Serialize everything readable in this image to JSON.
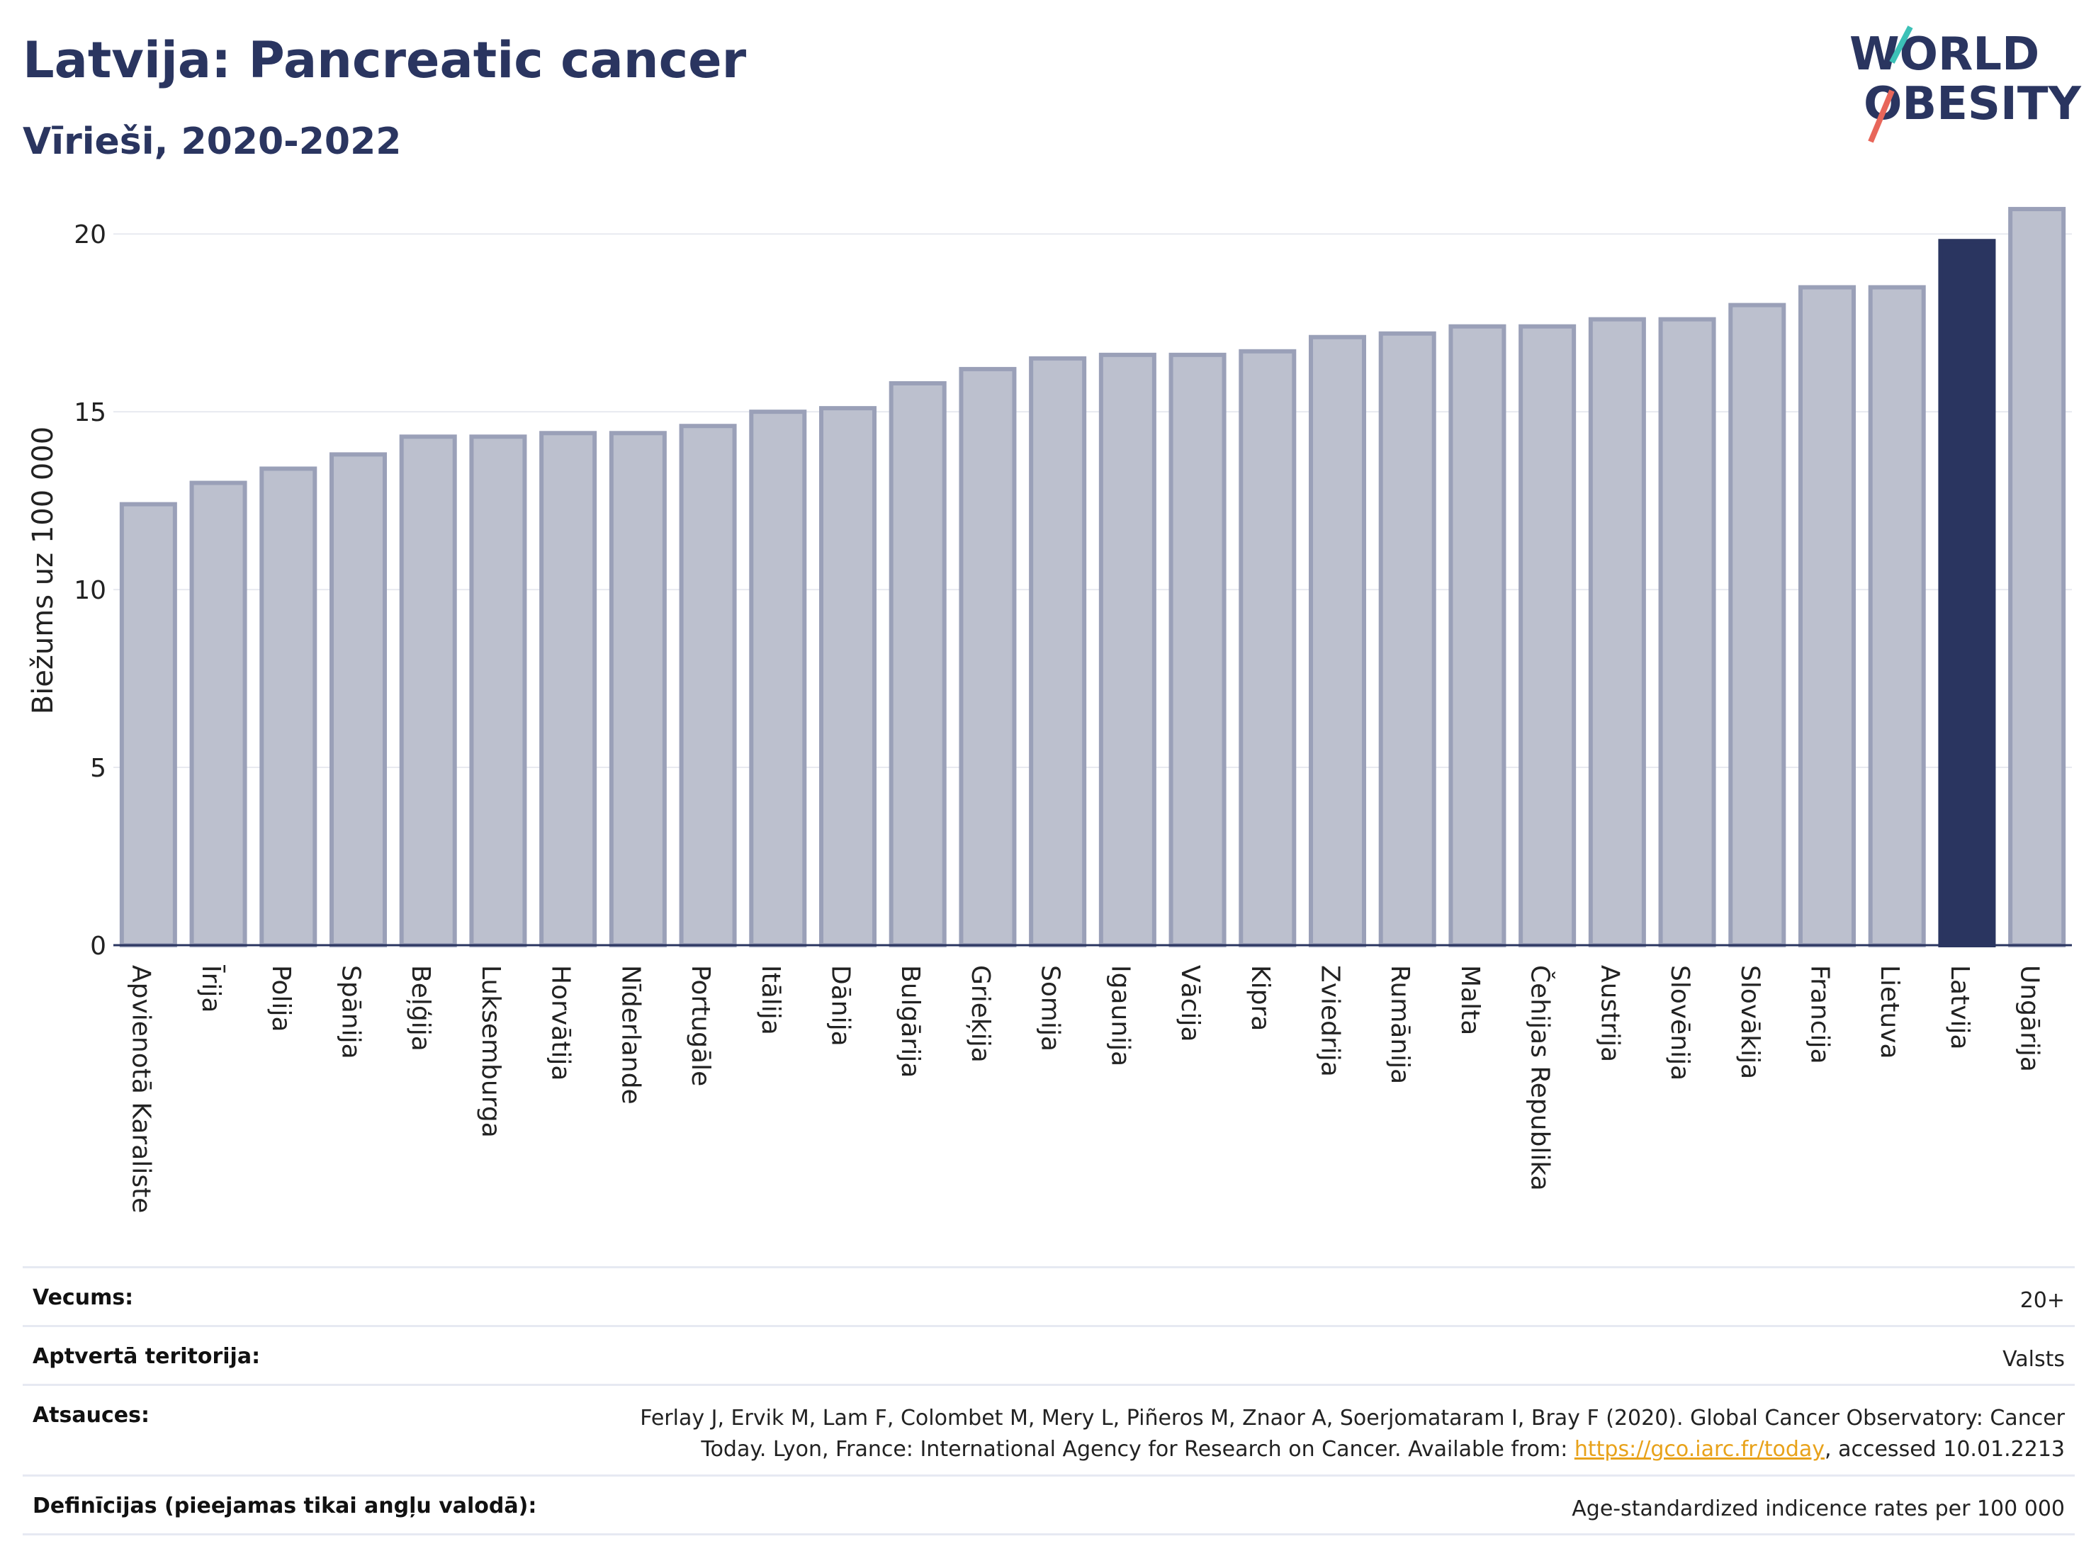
{
  "title": "Latvija: Pancreatic cancer",
  "subtitle": "Vīrieši, 2020-2022",
  "logo": {
    "line1": "WORLD",
    "line2": "OBESITY",
    "accent_colors": [
      "#3cc1b7",
      "#e8665a"
    ]
  },
  "colors": {
    "bar": "#bcc0ce",
    "bar_border": "#9aa0b8",
    "highlight": "#2a3560",
    "grid": "#e8eaf0",
    "axis": "#2a3560"
  },
  "chart_data": {
    "type": "bar",
    "title": "Latvija: Pancreatic cancer",
    "subtitle": "Vīrieši, 2020-2022",
    "ylabel": "Biežums uz 100 000",
    "xlabel": "",
    "ylim": [
      0,
      21
    ],
    "yticks": [
      "0",
      "5",
      "10",
      "15",
      "20"
    ],
    "grid": true,
    "highlight": "Latvija",
    "categories": [
      "Apvienotā Karaliste",
      "Īrija",
      "Polija",
      "Spānija",
      "Beļģija",
      "Luksemburga",
      "Horvātija",
      "Nīderlande",
      "Portugāle",
      "Itālija",
      "Dānija",
      "Bulgārija",
      "Grieķija",
      "Somija",
      "Igaunija",
      "Vācija",
      "Kipra",
      "Zviedrija",
      "Rumānija",
      "Malta",
      "Čehijas Republika",
      "Austrija",
      "Slovēnija",
      "Slovākija",
      "Francija",
      "Lietuva",
      "Latvija",
      "Ungārija"
    ],
    "values": [
      12.4,
      13.0,
      13.4,
      13.8,
      14.3,
      14.3,
      14.4,
      14.4,
      14.6,
      15.0,
      15.1,
      15.8,
      16.2,
      16.5,
      16.6,
      16.6,
      16.7,
      17.1,
      17.2,
      17.4,
      17.4,
      17.6,
      17.6,
      18.0,
      18.5,
      18.5,
      19.8,
      20.7
    ]
  },
  "info": [
    {
      "label": "Vecums:",
      "value": "20+"
    },
    {
      "label": "Aptvertā teritorija:",
      "value": "Valsts"
    },
    {
      "label": "Atsauces:",
      "value_line1": "Ferlay J, Ervik M, Lam F, Colombet M, Mery L, Piñeros M, Znaor A, Soerjomataram I, Bray F (2020). Global Cancer Observatory: Cancer",
      "value_line2_pre": "Today. Lyon, France: International Agency for Research on Cancer. Available from: ",
      "link": "https://gco.iarc.fr/today",
      "value_line2_post": ", accessed 10.01.2213"
    },
    {
      "label": "Definīcijas (pieejamas tikai angļu valodā):",
      "value": "Age-standardized indicence rates per 100 000"
    }
  ]
}
